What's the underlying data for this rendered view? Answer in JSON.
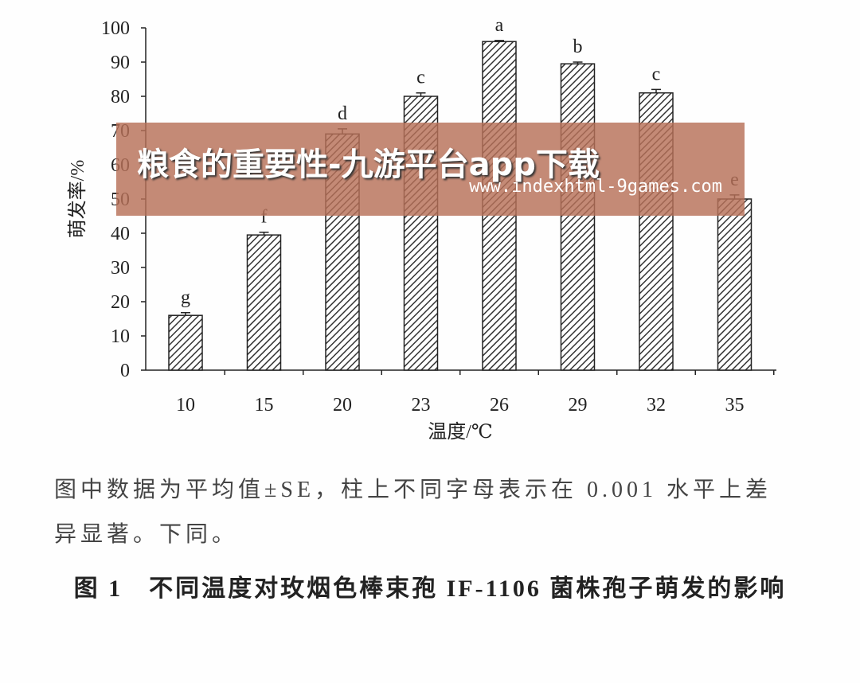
{
  "chart_data": {
    "type": "bar",
    "xlabel": "温度/℃",
    "ylabel": "萌发率/%",
    "categories": [
      "10",
      "15",
      "20",
      "23",
      "26",
      "29",
      "32",
      "35"
    ],
    "values": [
      16,
      39.5,
      69,
      80,
      96,
      89.5,
      81,
      50
    ],
    "errors": [
      0.8,
      0.8,
      1.5,
      1,
      0.3,
      0.5,
      1,
      1.2
    ],
    "letters": [
      "g",
      "f",
      "d",
      "c",
      "a",
      "b",
      "c",
      "e"
    ],
    "ylim": [
      0,
      100
    ],
    "yticks": [
      0,
      10,
      20,
      30,
      40,
      50,
      60,
      70,
      80,
      90,
      100
    ]
  },
  "note": "图中数据为平均值±SE，柱上不同字母表示在 0.001 水平上差异显著。下同。",
  "caption": "图 1　不同温度对玫烟色棒束孢 IF-1106 菌株孢子萌发的影响",
  "watermark": {
    "title": "粮食的重要性-九游平台app下载",
    "url": "www.indexhtml-9games.com"
  }
}
